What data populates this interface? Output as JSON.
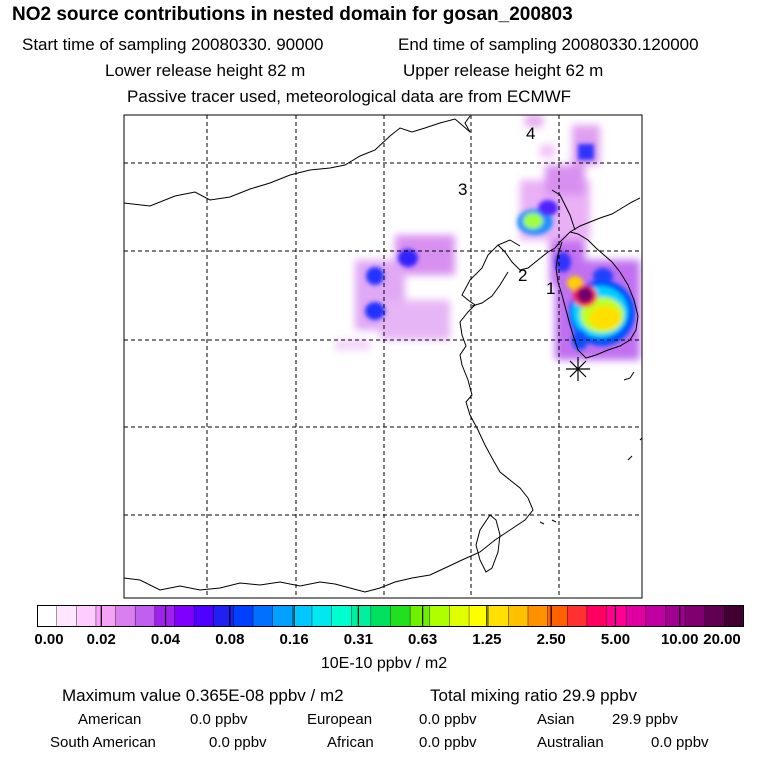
{
  "header": {
    "title": "NO2 source contributions in nested domain for gosan_200803",
    "start_label": "Start time of sampling 20080330. 90000",
    "end_label": "End time of sampling 20080330.120000",
    "lower_label": "Lower release height   82 m",
    "upper_label": "Upper release height   62 m",
    "tracer_note": "Passive tracer used, meteorological data are from ECMWF"
  },
  "map": {
    "region_labels": [
      "1",
      "2",
      "3",
      "4"
    ],
    "receptor_marker": "asterisk-receptor-icon"
  },
  "colorbar": {
    "tick_labels": [
      "0.00",
      "0.02",
      "0.04",
      "0.08",
      "0.16",
      "0.31",
      "0.63",
      "1.25",
      "2.50",
      "5.00",
      "10.00",
      "20.00"
    ],
    "colors": [
      "#ffffff",
      "#ffe6ff",
      "#ffccff",
      "#f5a3f5",
      "#d97ff0",
      "#c060f0",
      "#a020f0",
      "#8000ff",
      "#5000ff",
      "#2020f0",
      "#0040ff",
      "#0070ff",
      "#00a0ff",
      "#00c8ff",
      "#00e8f0",
      "#00ffd0",
      "#00f0a0",
      "#00e060",
      "#20e020",
      "#70f000",
      "#b0ff00",
      "#e0ff00",
      "#ffff00",
      "#ffe000",
      "#ffc000",
      "#ff9000",
      "#ff6000",
      "#ff3030",
      "#ff0060",
      "#ff0090",
      "#e000a0",
      "#c000a0",
      "#a00090",
      "#800070",
      "#600050",
      "#400030"
    ],
    "units": "10E-10 ppbv / m2"
  },
  "footer": {
    "max_value": "Maximum value  0.365E-08 ppbv / m2",
    "total_mixing": "Total mixing ratio       29.9 ppbv",
    "american_label": "American",
    "american_value": "0.0 ppbv",
    "european_label": "European",
    "european_value": "0.0 ppbv",
    "asian_label": "Asian",
    "asian_value": "29.9 ppbv",
    "south_american_label": "South American",
    "south_american_value": "0.0 ppbv",
    "african_label": "African",
    "african_value": "0.0 ppbv",
    "australian_label": "Australian",
    "australian_value": "0.0 ppbv"
  }
}
